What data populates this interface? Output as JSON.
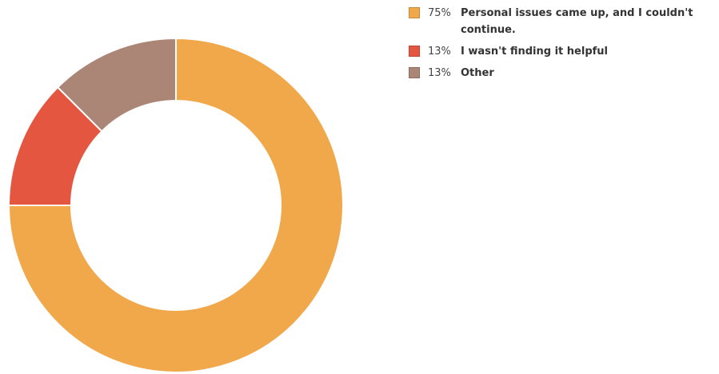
{
  "chart_data": {
    "type": "pie",
    "donut": true,
    "legend_position": "top-right",
    "slices": [
      {
        "label": "Personal issues came up, and I couldn't continue.",
        "value": 75,
        "percent_label": "75%",
        "color": "#f0a84b"
      },
      {
        "label": "I wasn't finding it helpful",
        "value": 12.5,
        "percent_label": "13%",
        "color": "#e55640"
      },
      {
        "label": "Other",
        "value": 12.5,
        "percent_label": "13%",
        "color": "#ab8576"
      }
    ]
  }
}
